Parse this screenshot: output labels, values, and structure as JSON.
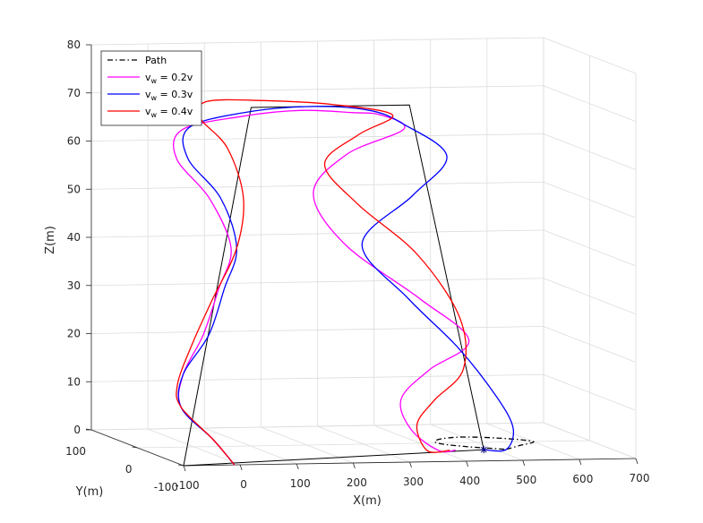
{
  "chart_data": {
    "type": "line",
    "projection": "3d",
    "xlabel": "X(m)",
    "ylabel": "Y(m)",
    "zlabel": "Z(m)",
    "xlim": [
      -100,
      700
    ],
    "ylim": [
      -100,
      100
    ],
    "zlim": [
      0,
      80
    ],
    "x_ticks": [
      "-100",
      "0",
      "100",
      "200",
      "300",
      "400",
      "500",
      "600",
      "700"
    ],
    "y_ticks": [
      "-100",
      "0",
      "100"
    ],
    "z_ticks": [
      "0",
      "10",
      "20",
      "30",
      "40",
      "50",
      "60",
      "70",
      "80"
    ],
    "grid": true,
    "legend_position": "top-left",
    "legend": [
      {
        "label": "Path",
        "color": "#000000",
        "style": "dash-dot"
      },
      {
        "label_base": "v",
        "label_sub": "w",
        "label_rest": " = 0.2v",
        "color": "#ff00ff",
        "style": "solid"
      },
      {
        "label_base": "v",
        "label_sub": "w",
        "label_rest": " = 0.3v",
        "color": "#0000ff",
        "style": "solid"
      },
      {
        "label_base": "v",
        "label_sub": "w",
        "label_rest": " = 0.4v",
        "color": "#ff0000",
        "style": "solid"
      }
    ],
    "series": [
      {
        "name": "Path",
        "color": "#000000",
        "style": "dash-dot",
        "points": [
          [
            520,
            -40,
            0
          ],
          [
            560,
            -20,
            0
          ],
          [
            600,
            0,
            0
          ],
          [
            560,
            20,
            0
          ],
          [
            500,
            30,
            0
          ],
          [
            450,
            20,
            0
          ],
          [
            430,
            0,
            0
          ],
          [
            460,
            -20,
            0
          ],
          [
            520,
            -40,
            0
          ]
        ]
      },
      {
        "name": "frame",
        "color": "#000000",
        "style": "solid",
        "points": [
          [
            -100,
            -100,
            0
          ],
          [
            480,
            -40,
            0
          ],
          [
            430,
            60,
            68
          ],
          [
            150,
            60,
            68
          ],
          [
            -100,
            -100,
            0
          ]
        ]
      },
      {
        "name": "v_w = 0.2v",
        "color": "#ff00ff",
        "style": "solid",
        "points": [
          [
            -10,
            -100,
            0
          ],
          [
            -40,
            -90,
            5
          ],
          [
            -80,
            -70,
            11
          ],
          [
            -60,
            -50,
            17
          ],
          [
            0,
            -20,
            24
          ],
          [
            60,
            20,
            32
          ],
          [
            90,
            30,
            40
          ],
          [
            60,
            40,
            50
          ],
          [
            10,
            50,
            58
          ],
          [
            20,
            50,
            64
          ],
          [
            120,
            40,
            67
          ],
          [
            220,
            40,
            68
          ],
          [
            320,
            50,
            67
          ],
          [
            380,
            60,
            66
          ],
          [
            420,
            60,
            63
          ],
          [
            320,
            60,
            58
          ],
          [
            260,
            60,
            50
          ],
          [
            300,
            40,
            40
          ],
          [
            400,
            0,
            30
          ],
          [
            470,
            -20,
            22
          ],
          [
            400,
            -20,
            16
          ],
          [
            350,
            -20,
            10
          ],
          [
            360,
            -30,
            4
          ],
          [
            400,
            -40,
            0
          ],
          [
            430,
            -40,
            0
          ]
        ]
      },
      {
        "name": "v_w = 0.3v",
        "color": "#0000ff",
        "style": "solid",
        "points": [
          [
            -10,
            -100,
            0
          ],
          [
            -40,
            -90,
            5
          ],
          [
            -80,
            -70,
            11
          ],
          [
            -60,
            -50,
            17
          ],
          [
            10,
            -20,
            24
          ],
          [
            70,
            20,
            32
          ],
          [
            100,
            30,
            40
          ],
          [
            80,
            40,
            50
          ],
          [
            30,
            50,
            58
          ],
          [
            40,
            60,
            64
          ],
          [
            140,
            60,
            67
          ],
          [
            260,
            60,
            68
          ],
          [
            360,
            60,
            67
          ],
          [
            420,
            60,
            64
          ],
          [
            480,
            40,
            58
          ],
          [
            420,
            40,
            50
          ],
          [
            330,
            40,
            40
          ],
          [
            380,
            0,
            30
          ],
          [
            460,
            -10,
            20
          ],
          [
            520,
            -20,
            10
          ],
          [
            540,
            -30,
            4
          ],
          [
            520,
            -40,
            0
          ],
          [
            480,
            -40,
            0
          ]
        ]
      },
      {
        "name": "v_w = 0.4v",
        "color": "#ff0000",
        "style": "solid",
        "points": [
          [
            -10,
            -100,
            0
          ],
          [
            -40,
            -90,
            5
          ],
          [
            -80,
            -70,
            11
          ],
          [
            -70,
            -50,
            15
          ],
          [
            -20,
            -20,
            22
          ],
          [
            40,
            10,
            30
          ],
          [
            100,
            30,
            40
          ],
          [
            120,
            40,
            50
          ],
          [
            100,
            50,
            60
          ],
          [
            60,
            60,
            66
          ],
          [
            80,
            70,
            69
          ],
          [
            180,
            70,
            69
          ],
          [
            300,
            70,
            68
          ],
          [
            400,
            60,
            66
          ],
          [
            340,
            60,
            62
          ],
          [
            280,
            60,
            56
          ],
          [
            330,
            50,
            48
          ],
          [
            420,
            30,
            38
          ],
          [
            470,
            0,
            26
          ],
          [
            460,
            -20,
            16
          ],
          [
            400,
            -30,
            10
          ],
          [
            370,
            -30,
            5
          ],
          [
            380,
            -40,
            0
          ],
          [
            420,
            -40,
            0
          ]
        ]
      }
    ]
  }
}
